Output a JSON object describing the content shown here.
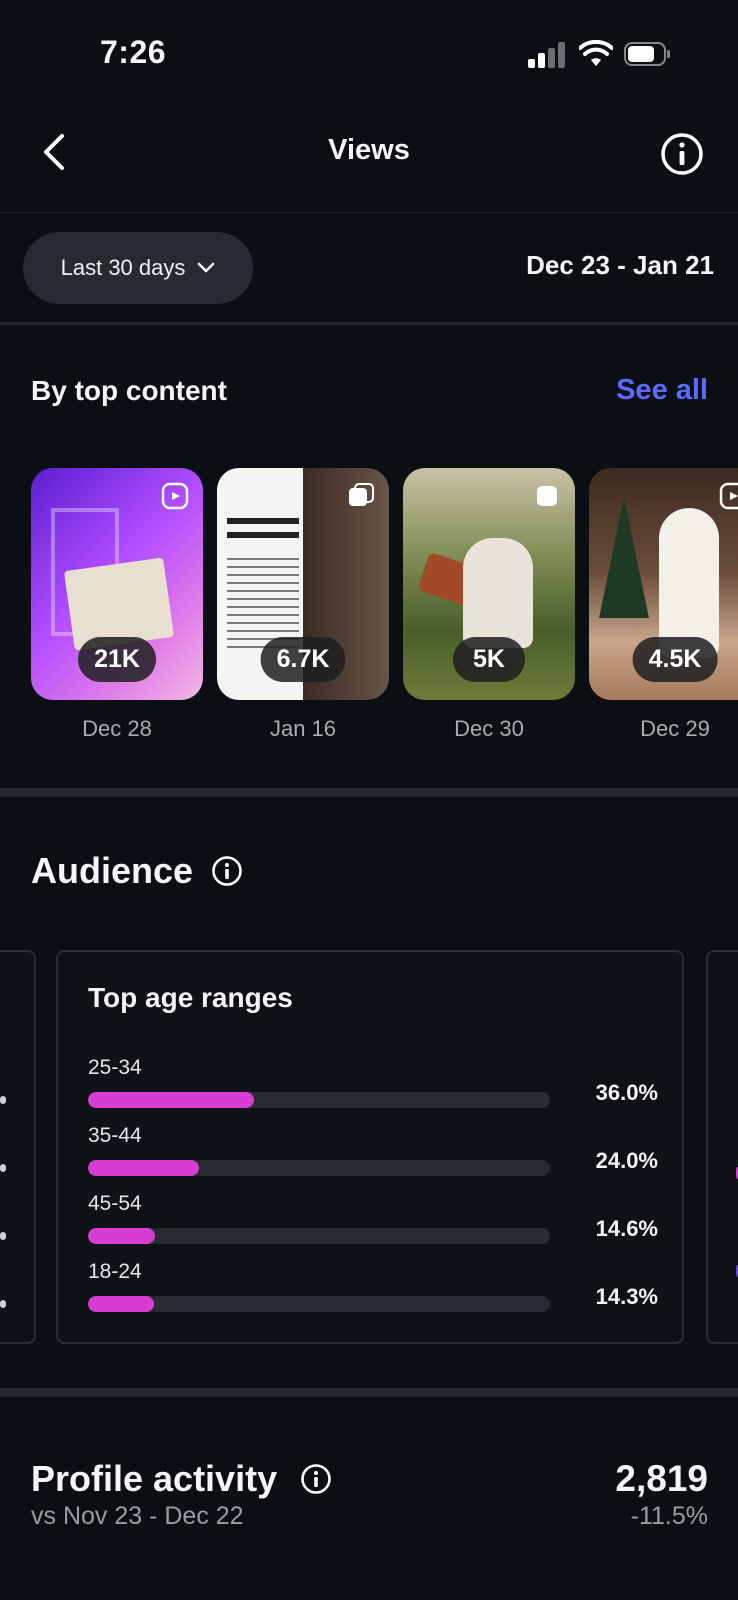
{
  "status": {
    "time": "7:26"
  },
  "nav": {
    "title": "Views"
  },
  "filter": {
    "period_label": "Last 30 days",
    "date_range": "Dec 23 - Jan 21"
  },
  "top_content": {
    "title": "By top content",
    "see_all": "See all",
    "items": [
      {
        "views": "21K",
        "date": "Dec 28",
        "type": "reel-icon"
      },
      {
        "views": "6.7K",
        "date": "Jan 16",
        "type": "carousel-icon"
      },
      {
        "views": "5K",
        "date": "Dec 30",
        "type": "post-icon"
      },
      {
        "views": "4.5K",
        "date": "Dec 29",
        "type": "reel-icon"
      }
    ]
  },
  "audience": {
    "title": "Audience",
    "age_card": {
      "title": "Top age ranges",
      "rows": [
        {
          "label": "25-34",
          "pct": "36.0%",
          "value": 36.0
        },
        {
          "label": "35-44",
          "pct": "24.0%",
          "value": 24.0
        },
        {
          "label": "45-54",
          "pct": "14.6%",
          "value": 14.6
        },
        {
          "label": "18-24",
          "pct": "14.3%",
          "value": 14.3
        }
      ]
    }
  },
  "profile_activity": {
    "title": "Profile activity",
    "compare": "vs Nov 23 - Dec 22",
    "value": "2,819",
    "change": "-11.5%"
  },
  "colors": {
    "accent": "#5b6bff",
    "bar": "#d83cd2",
    "background": "#0b0e13"
  }
}
